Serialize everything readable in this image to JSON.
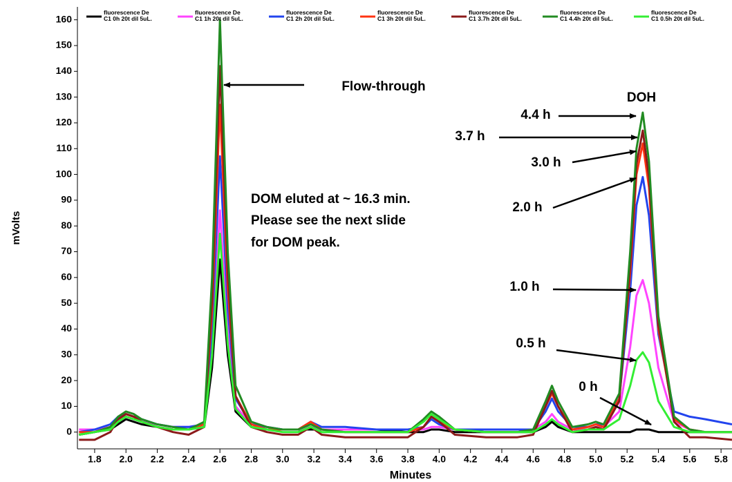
{
  "chart_data": {
    "type": "line",
    "x_label": "Minutes",
    "y_label": "mVolts",
    "xlim": [
      1.69,
      5.87
    ],
    "ylim": [
      -6.5,
      165
    ],
    "xticks": [
      1.8,
      {
        "value": 2,
        "label": "2.0"
      },
      2.2,
      2.4,
      2.6,
      2.8,
      {
        "value": 3,
        "label": "3.0"
      },
      3.2,
      3.4,
      3.6,
      3.8,
      {
        "value": 4,
        "label": "4.0"
      },
      4.2,
      4.4,
      4.6,
      4.8,
      {
        "value": 5,
        "label": "5.0"
      },
      5.2,
      5.4,
      5.6,
      5.8
    ],
    "yticks": [
      0,
      10,
      20,
      30,
      40,
      50,
      60,
      70,
      80,
      90,
      100,
      110,
      120,
      130,
      140,
      150,
      160
    ],
    "x": [
      1.7,
      1.8,
      1.9,
      1.95,
      2.0,
      2.05,
      2.1,
      2.2,
      2.3,
      2.4,
      2.5,
      2.55,
      2.6,
      2.65,
      2.7,
      2.8,
      2.9,
      3.0,
      3.1,
      3.18,
      3.25,
      3.4,
      3.6,
      3.8,
      3.9,
      3.95,
      4.0,
      4.1,
      4.3,
      4.5,
      4.6,
      4.68,
      4.72,
      4.76,
      4.85,
      4.95,
      5.0,
      5.05,
      5.15,
      5.22,
      5.26,
      5.3,
      5.34,
      5.4,
      5.5,
      5.6,
      5.7,
      5.87
    ],
    "series": [
      {
        "name": "fluorescence De\nC1 0h 20t dil 5uL.",
        "color": "#000000",
        "values": [
          -1,
          0,
          1,
          3,
          5,
          4,
          3,
          2,
          1,
          1,
          2,
          25,
          67,
          30,
          8,
          2,
          1,
          1,
          1,
          1,
          1,
          1,
          1,
          0,
          0,
          1,
          1,
          0,
          0,
          0,
          0,
          2,
          4,
          2,
          0,
          0,
          0,
          0,
          0,
          0,
          1,
          1,
          1,
          0,
          0,
          0,
          0,
          0
        ]
      },
      {
        "name": "fluorescence De\nC1 1h 20t dil 5uL.",
        "color": "#ff44ff",
        "values": [
          1,
          1,
          2,
          5,
          6,
          5,
          4,
          3,
          2,
          2,
          3,
          32,
          86,
          38,
          10,
          3,
          2,
          1,
          1,
          2,
          1,
          1,
          1,
          1,
          1,
          2,
          2,
          1,
          0,
          0,
          1,
          4,
          7,
          4,
          1,
          1,
          2,
          2,
          8,
          33,
          53,
          59,
          50,
          25,
          4,
          1,
          0,
          0
        ]
      },
      {
        "name": "fluorescence De\nC1 2h 20t dil 5uL.",
        "color": "#2244ee",
        "values": [
          0,
          1,
          3,
          6,
          7,
          6,
          5,
          3,
          2,
          2,
          3,
          40,
          107,
          48,
          13,
          3,
          2,
          1,
          1,
          4,
          2,
          2,
          1,
          1,
          2,
          5,
          3,
          1,
          1,
          1,
          1,
          8,
          13,
          8,
          2,
          2,
          3,
          3,
          13,
          55,
          88,
          99,
          84,
          38,
          8,
          6,
          5,
          3
        ]
      },
      {
        "name": "fluorescence De\nC1 3h 20t dil 5uL.",
        "color": "#ff3311",
        "values": [
          0,
          0,
          2,
          5,
          7,
          6,
          4,
          2,
          1,
          1,
          3,
          47,
          127,
          56,
          14,
          3,
          1,
          1,
          1,
          4,
          1,
          0,
          0,
          0,
          2,
          6,
          4,
          1,
          0,
          0,
          1,
          10,
          15,
          10,
          1,
          2,
          3,
          2,
          13,
          62,
          100,
          112,
          95,
          40,
          5,
          1,
          0,
          0
        ]
      },
      {
        "name": "fluorescence De\nC1 3.7h 20t dil 5uL.",
        "color": "#8b1a1a",
        "values": [
          -3,
          -3,
          0,
          5,
          7,
          6,
          4,
          2,
          0,
          -1,
          2,
          52,
          142,
          62,
          14,
          2,
          0,
          -1,
          -1,
          2,
          -1,
          -2,
          -2,
          -2,
          2,
          6,
          4,
          -1,
          -2,
          -2,
          -1,
          10,
          16,
          10,
          0,
          1,
          2,
          1,
          12,
          65,
          104,
          117,
          99,
          42,
          4,
          -2,
          -2,
          -3
        ]
      },
      {
        "name": "fluorescence De\nC1 4.4h 20t dil 5uL.",
        "color": "#228b22",
        "values": [
          -1,
          0,
          2,
          6,
          8,
          7,
          5,
          3,
          2,
          1,
          4,
          60,
          160,
          70,
          18,
          4,
          2,
          1,
          1,
          3,
          1,
          0,
          0,
          0,
          5,
          8,
          6,
          1,
          0,
          0,
          1,
          12,
          18,
          12,
          2,
          3,
          4,
          3,
          15,
          70,
          110,
          124,
          105,
          45,
          6,
          1,
          0,
          0
        ]
      },
      {
        "name": "fluorescence De\nC1 0.5h 20t dil 5uL.",
        "color": "#33ee33",
        "values": [
          -1,
          0,
          1,
          4,
          6,
          5,
          4,
          2,
          1,
          1,
          2,
          30,
          77,
          34,
          9,
          2,
          1,
          0,
          0,
          2,
          0,
          0,
          0,
          0,
          4,
          7,
          5,
          1,
          0,
          0,
          0,
          3,
          5,
          3,
          0,
          1,
          1,
          1,
          5,
          18,
          28,
          31,
          27,
          12,
          2,
          0,
          0,
          0
        ]
      }
    ],
    "annotations": [
      "Flow-through",
      "DOH",
      "DOM eluted at ~ 16.3 min.",
      "Please see the next slide",
      "for DOM peak.",
      "4.4 h",
      "3.7 h",
      "3.0 h",
      "2.0 h",
      "1.0 h",
      "0.5 h",
      "0 h"
    ]
  }
}
